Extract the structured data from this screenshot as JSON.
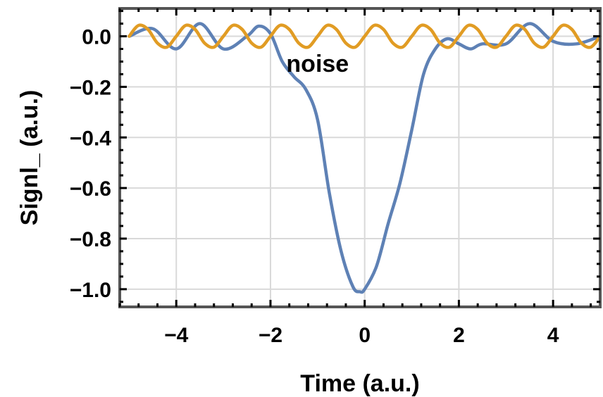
{
  "chart_data": {
    "type": "line",
    "title": "",
    "xlabel": "Time (a.u.)",
    "ylabel": "Signl_ (a.u.)",
    "xlim": [
      -5.2,
      5.0
    ],
    "ylim": [
      -1.07,
      0.11
    ],
    "grid": true,
    "x_ticks": [
      -4,
      -2,
      0,
      2,
      4
    ],
    "x_tick_labels": [
      "−4",
      "−2",
      "0",
      "2",
      "4"
    ],
    "y_ticks": [
      0.0,
      -0.2,
      -0.4,
      -0.6,
      -0.8,
      -1.0
    ],
    "y_tick_labels": [
      "0.0",
      "−0.2",
      "−0.4",
      "−0.6",
      "−0.8",
      "−1.0"
    ],
    "annotations": [
      {
        "text": "noise",
        "x": -1.0,
        "y": -0.14
      }
    ],
    "series": [
      {
        "color": "#5E81B5",
        "x": [
          -5.0,
          -4.5,
          -4.0,
          -3.5,
          -3.0,
          -2.5,
          -2.25,
          -2.0,
          -1.75,
          -1.5,
          -1.25,
          -1.0,
          -0.75,
          -0.5,
          -0.25,
          -0.1,
          0.0,
          0.25,
          0.5,
          0.75,
          1.0,
          1.25,
          1.5,
          1.75,
          2.0,
          2.25,
          2.5,
          3.0,
          3.5,
          4.0,
          4.5,
          5.0
        ],
        "y": [
          0.0,
          0.03,
          -0.05,
          0.05,
          -0.05,
          0.0,
          0.04,
          0.01,
          -0.1,
          -0.16,
          -0.21,
          -0.33,
          -0.62,
          -0.85,
          -0.99,
          -1.01,
          -1.0,
          -0.91,
          -0.74,
          -0.58,
          -0.37,
          -0.15,
          -0.05,
          -0.01,
          -0.03,
          -0.05,
          -0.03,
          -0.03,
          0.05,
          -0.02,
          -0.03,
          0.0
        ]
      },
      {
        "color": "#E19C24",
        "x": [
          -5.0,
          -4.8,
          -4.6,
          -4.4,
          -4.2,
          -4.0,
          -3.8,
          -3.6,
          -3.4,
          -3.2,
          -3.0,
          -2.8,
          -2.6,
          -2.4,
          -2.2,
          -2.0,
          -1.8,
          -1.6,
          -1.4,
          -1.2,
          -1.0,
          -0.8,
          -0.6,
          -0.4,
          -0.2,
          0.0,
          0.2,
          0.4,
          0.6,
          0.8,
          1.0,
          1.2,
          1.4,
          1.6,
          1.8,
          2.0,
          2.2,
          2.4,
          2.6,
          2.8,
          3.0,
          3.2,
          3.4,
          3.6,
          3.8,
          4.0,
          4.2,
          4.4,
          4.6,
          4.8,
          5.0
        ],
        "y": [
          0.0,
          0.043,
          0.027,
          -0.027,
          -0.043,
          0.0,
          0.043,
          0.027,
          -0.027,
          -0.043,
          0.0,
          0.043,
          0.027,
          -0.027,
          -0.043,
          0.0,
          0.043,
          0.027,
          -0.027,
          -0.043,
          0.0,
          0.043,
          0.027,
          -0.027,
          -0.043,
          0.0,
          0.043,
          0.027,
          -0.027,
          -0.043,
          0.0,
          0.043,
          0.027,
          -0.027,
          -0.043,
          0.0,
          0.043,
          0.027,
          -0.027,
          -0.043,
          0.0,
          0.043,
          0.027,
          -0.027,
          -0.043,
          0.0,
          0.043,
          0.027,
          -0.027,
          -0.043,
          0.0
        ]
      }
    ]
  }
}
